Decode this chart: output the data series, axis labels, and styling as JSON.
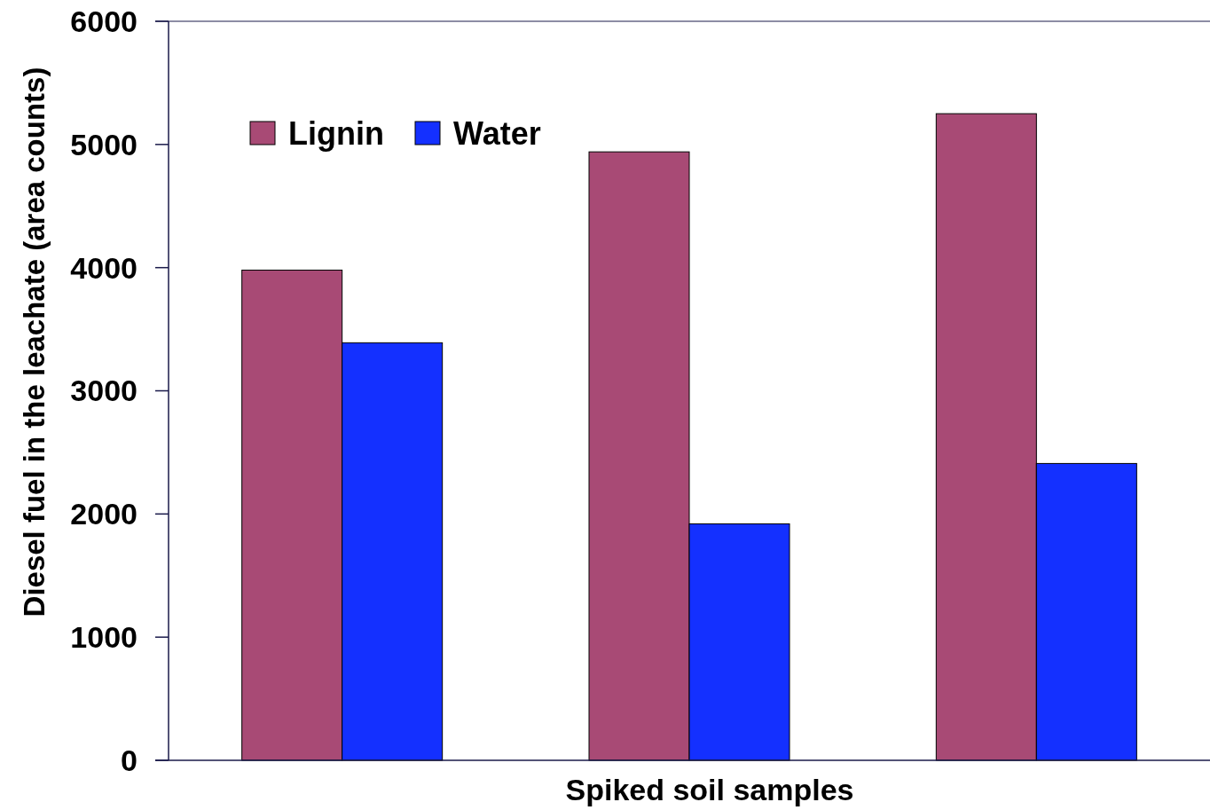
{
  "chart_data": {
    "type": "bar",
    "xlabel": "Spiked soil samples",
    "ylabel": "Diesel fuel in the leachate (area counts)",
    "categories": [
      null,
      null,
      null
    ],
    "series": [
      {
        "name": "Lignin",
        "color": "#a84a75",
        "values": [
          3980,
          4940,
          5250
        ]
      },
      {
        "name": "Water",
        "color": "#1430ff",
        "values": [
          3390,
          1920,
          2410
        ]
      }
    ],
    "ylim": [
      0,
      6000
    ],
    "yticks": [
      0,
      1000,
      2000,
      3000,
      4000,
      5000,
      6000
    ],
    "legend": "top left",
    "grid": false
  }
}
